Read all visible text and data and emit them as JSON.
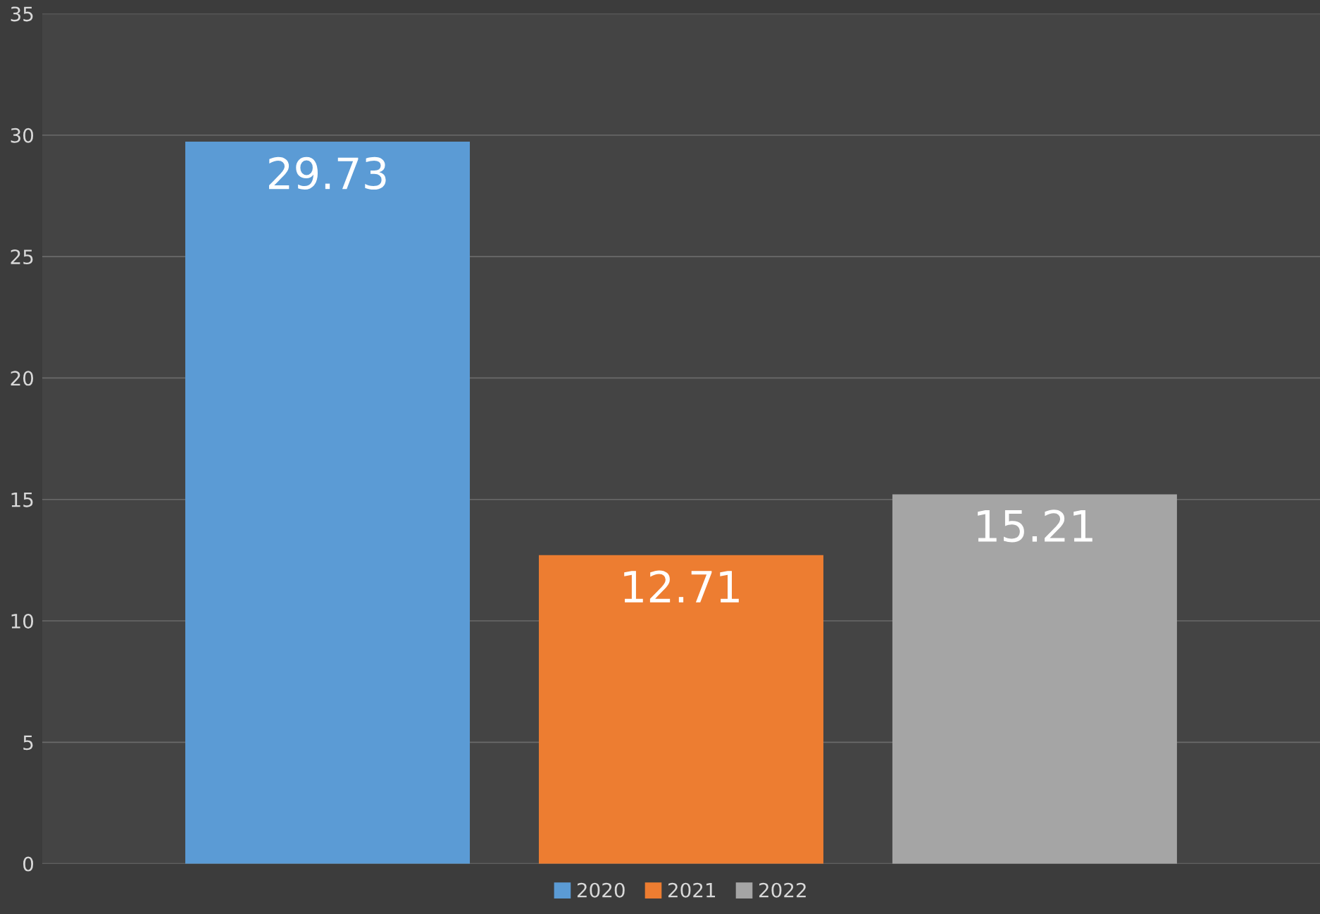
{
  "chart_data": {
    "type": "bar",
    "categories": [
      null
    ],
    "series": [
      {
        "name": "2020",
        "color": "#5b9bd5",
        "values": [
          29.73
        ]
      },
      {
        "name": "2021",
        "color": "#ed7d31",
        "values": [
          12.71
        ]
      },
      {
        "name": "2022",
        "color": "#a5a5a5",
        "values": [
          15.21
        ]
      }
    ],
    "ylim": [
      0,
      35
    ],
    "yticks": [
      0,
      5,
      10,
      15,
      20,
      25,
      30,
      35
    ],
    "grid": "y",
    "legend": "bottom",
    "data_labels": true
  }
}
